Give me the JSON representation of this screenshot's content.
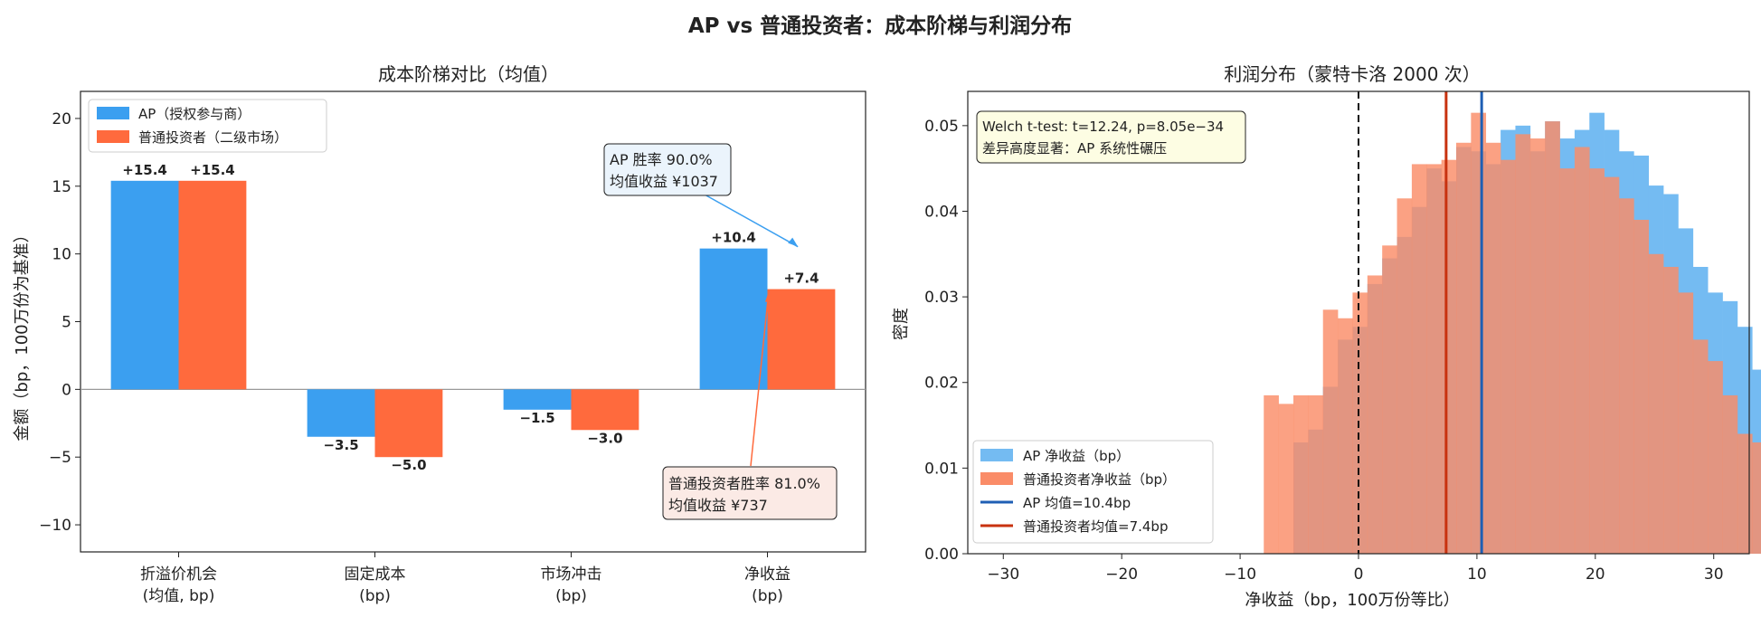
{
  "suptitle": "AP vs 普通投资者：成本阶梯与利润分布",
  "colors": {
    "ap": "#3b9ff0",
    "retail": "#ff6a3d",
    "ap_hist": "#74bbf2",
    "retail_hist": "#fa8c68",
    "ap_mean": "#1f5fb4",
    "retail_mean": "#c8320f",
    "pos_label": "#1a8a1a",
    "neg_label": "#e0141e"
  },
  "chart_data": [
    {
      "type": "bar",
      "title": "成本阶梯对比（均值）",
      "ylabel": "金额（bp，100万份为基准）",
      "ylim": [
        -12,
        22
      ],
      "yticks": [
        -10,
        -5,
        0,
        5,
        10,
        15,
        20
      ],
      "categories": [
        [
          "折溢价机会",
          "(均值, bp)"
        ],
        [
          "固定成本",
          "(bp)"
        ],
        [
          "市场冲击",
          "(bp)"
        ],
        [
          "净收益",
          "(bp)"
        ]
      ],
      "legend_position": "top-left",
      "series": [
        {
          "name": "AP（授权参与商）",
          "values": [
            15.4,
            -3.5,
            -1.5,
            10.4
          ],
          "labels": [
            "+15.4",
            "−3.5",
            "−1.5",
            "+10.4"
          ]
        },
        {
          "name": "普通投资者（二级市场）",
          "values": [
            15.4,
            -5.0,
            -3.0,
            7.4
          ],
          "labels": [
            "+15.4",
            "−5.0",
            "−3.0",
            "+7.4"
          ]
        }
      ],
      "annotations": [
        {
          "lines": [
            "AP 胜率 90.0%",
            "均值收益 ¥1037"
          ],
          "series": 0,
          "target_category": 3,
          "target_value": 10.4
        },
        {
          "lines": [
            "普通投资者胜率 81.0%",
            "均值收益 ¥737"
          ],
          "series": 1,
          "target_category": 3,
          "target_value": 7.4
        }
      ]
    },
    {
      "type": "histogram",
      "title": "利润分布（蒙特卡洛 2000 次）",
      "xlabel": "净收益（bp，100万份等比）",
      "ylabel": "密度",
      "xlim": [
        -33,
        33
      ],
      "ylim": [
        0,
        0.054
      ],
      "xticks": [
        -30,
        -20,
        -10,
        0,
        10,
        20,
        30
      ],
      "yticks": [
        0.0,
        0.01,
        0.02,
        0.03,
        0.04,
        0.05
      ],
      "ytick_labels": [
        "0.00",
        "0.01",
        "0.02",
        "0.03",
        "0.04",
        "0.05"
      ],
      "legend_position": "lower-left",
      "stats_box": [
        "Welch t-test: t=12.24, p=8.05e−34",
        "差异高度显著：AP 系统性碾压"
      ],
      "ap_hist": {
        "name": "AP 净收益（bp）",
        "start": -5.5,
        "bin_width": 1.25,
        "densities": [
          0.013,
          0.0145,
          0.0195,
          0.025,
          0.0265,
          0.0315,
          0.0345,
          0.037,
          0.0405,
          0.045,
          0.0435,
          0.0475,
          0.047,
          0.0455,
          0.0495,
          0.05,
          0.047,
          0.0505,
          0.0485,
          0.0495,
          0.0515,
          0.0495,
          0.047,
          0.0465,
          0.043,
          0.042,
          0.038,
          0.0335,
          0.0305,
          0.0295,
          0.0265,
          0.0215,
          0.014,
          0.0145,
          0.0135,
          0.0075,
          0.0115,
          0.0085,
          0.006,
          0.0055,
          0.0045,
          0.0035,
          0.0025,
          0.0015,
          0.0015,
          0.0005
        ]
      },
      "retail_hist": {
        "name": "普通投资者净收益（bp）",
        "start": -8.0,
        "bin_width": 1.25,
        "densities": [
          0.0185,
          0.0175,
          0.0185,
          0.0185,
          0.0285,
          0.0275,
          0.0305,
          0.0325,
          0.036,
          0.0415,
          0.0455,
          0.0455,
          0.046,
          0.048,
          0.0515,
          0.048,
          0.046,
          0.049,
          0.0485,
          0.0505,
          0.045,
          0.0475,
          0.045,
          0.044,
          0.0415,
          0.039,
          0.035,
          0.0335,
          0.0305,
          0.025,
          0.0225,
          0.0185,
          0.014,
          0.013,
          0.0115,
          0.0095,
          0.006,
          0.0035,
          0.0025,
          0.0015,
          0.0005,
          0.0005
        ]
      },
      "vlines": [
        {
          "name": "AP 均值=10.4bp",
          "x": 10.4,
          "color": "ap_mean"
        },
        {
          "name": "普通投资者均值=7.4bp",
          "x": 7.4,
          "color": "retail_mean"
        },
        {
          "name": "",
          "x": 0,
          "color": "zero"
        }
      ]
    }
  ]
}
